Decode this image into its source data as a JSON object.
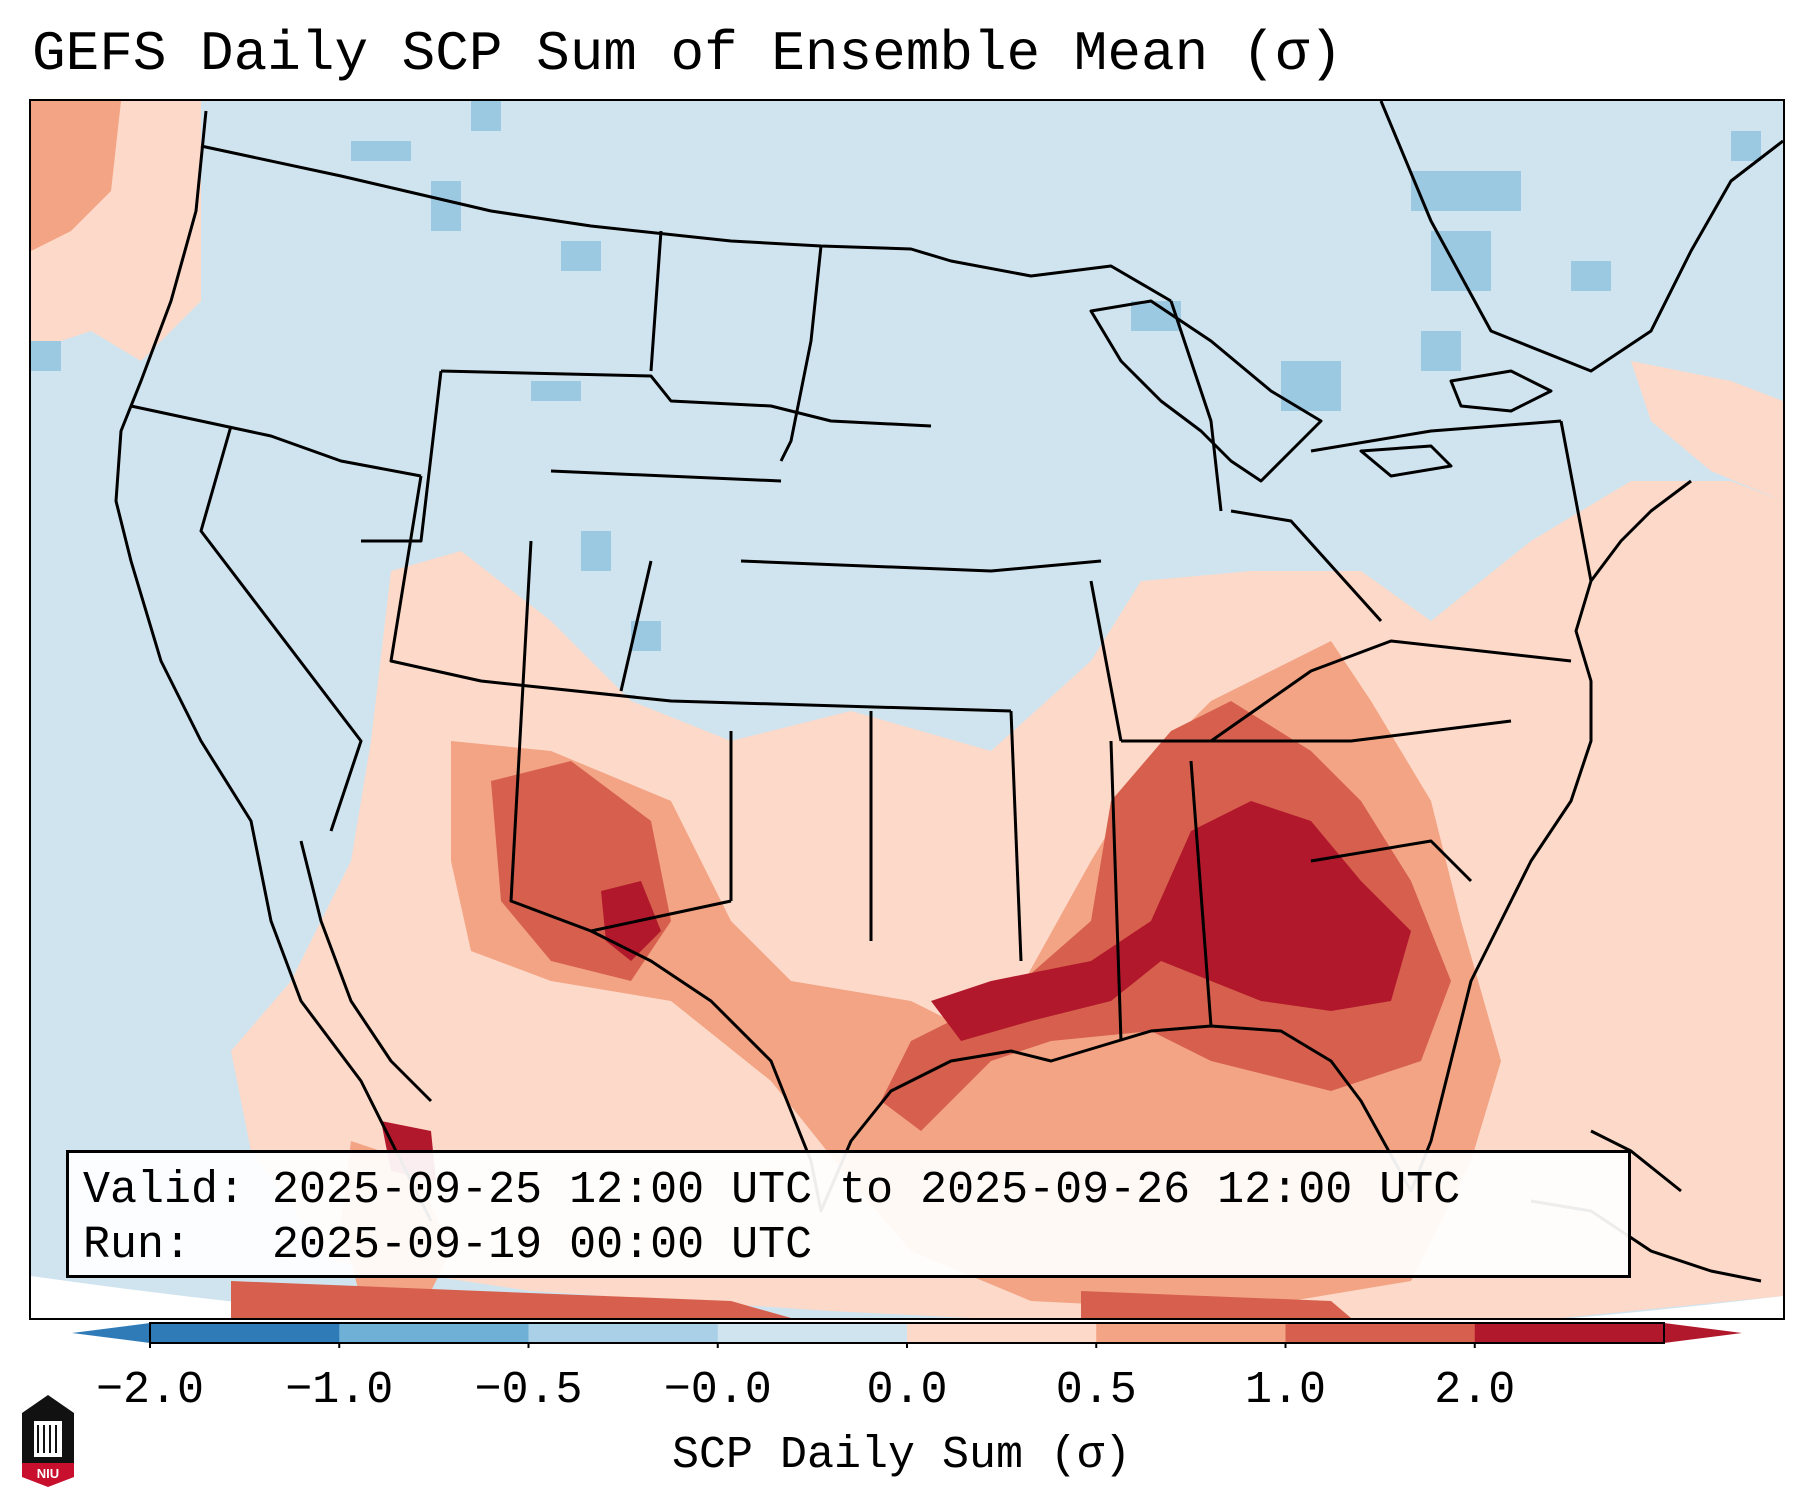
{
  "title": "GEFS Daily SCP Sum of Ensemble Mean (σ)",
  "map": {
    "projection": "lambert-conformal",
    "region": "CONUS",
    "variable": "SCP daily sum anomaly",
    "units": "σ",
    "key_areas": [
      {
        "name": "Southeast US (AL/GA/MS)",
        "approx_value": 2.0
      },
      {
        "name": "Gulf Coast (LA/TX)",
        "approx_value": 2.0
      },
      {
        "name": "Tennessee Valley",
        "approx_value": 1.5
      },
      {
        "name": "New Mexico",
        "approx_value": 1.5
      },
      {
        "name": "Northern Plains",
        "approx_value": -0.3
      },
      {
        "name": "Great Lakes / New England",
        "approx_value": -0.4
      }
    ]
  },
  "info": {
    "valid_line": "Valid: 2025-09-25 12:00 UTC to 2025-09-26 12:00 UTC",
    "run_line": "Run:   2025-09-19 00:00 UTC"
  },
  "colorbar": {
    "label": "SCP Daily Sum (σ)",
    "ticks": [
      "−2.0",
      "−1.0",
      "−0.5",
      "−0.0",
      "0.0",
      "0.5",
      "1.0",
      "2.0"
    ],
    "colors": [
      "#2f7bb8",
      "#6fb0d6",
      "#a9d0e6",
      "#d0e4ef",
      "#fcd9c8",
      "#f3a484",
      "#d6604d",
      "#b2182b"
    ],
    "extend": "both"
  },
  "logo": {
    "text": "NIU",
    "colors": {
      "primary": "#c8102e",
      "secondary": "#000000"
    }
  }
}
